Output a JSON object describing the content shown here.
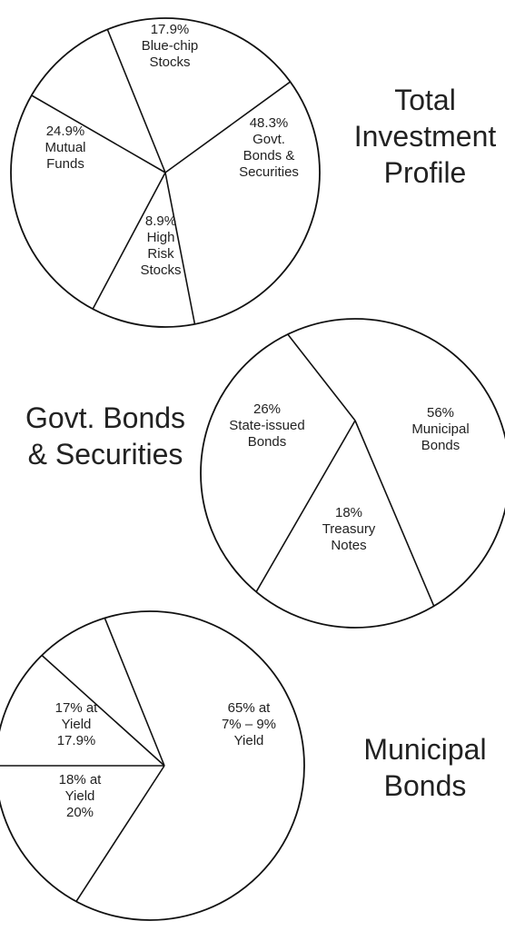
{
  "chart_data": [
    {
      "type": "pie",
      "title": [
        "Total",
        "Investment",
        "Profile"
      ],
      "slices": [
        {
          "label": [
            "17.9%",
            "Blue-chip",
            "Stocks"
          ],
          "value": 17.9
        },
        {
          "label": [
            "48.3%",
            "Govt.",
            "Bonds &",
            "Securities"
          ],
          "value": 48.3
        },
        {
          "label": [
            "8.9%",
            "High",
            "Risk",
            "Stocks"
          ],
          "value": 8.9
        },
        {
          "label": [
            "24.9%",
            "Mutual",
            "Funds"
          ],
          "value": 24.9
        }
      ]
    },
    {
      "type": "pie",
      "title": [
        "Govt. Bonds",
        "& Securities"
      ],
      "slices": [
        {
          "label": [
            "56%",
            "Municipal",
            "Bonds"
          ],
          "value": 56
        },
        {
          "label": [
            "18%",
            "Treasury",
            "Notes"
          ],
          "value": 18
        },
        {
          "label": [
            "26%",
            "State-issued",
            "Bonds"
          ],
          "value": 26
        }
      ]
    },
    {
      "type": "pie",
      "title": [
        "Municipal",
        "Bonds"
      ],
      "slices": [
        {
          "label": [
            "65% at",
            "7% – 9%",
            "Yield"
          ],
          "value": 65
        },
        {
          "label": [
            "18% at",
            "Yield",
            "20%"
          ],
          "value": 18
        },
        {
          "label": [
            "17% at",
            "Yield",
            "17.9%"
          ],
          "value": 17
        }
      ]
    }
  ]
}
